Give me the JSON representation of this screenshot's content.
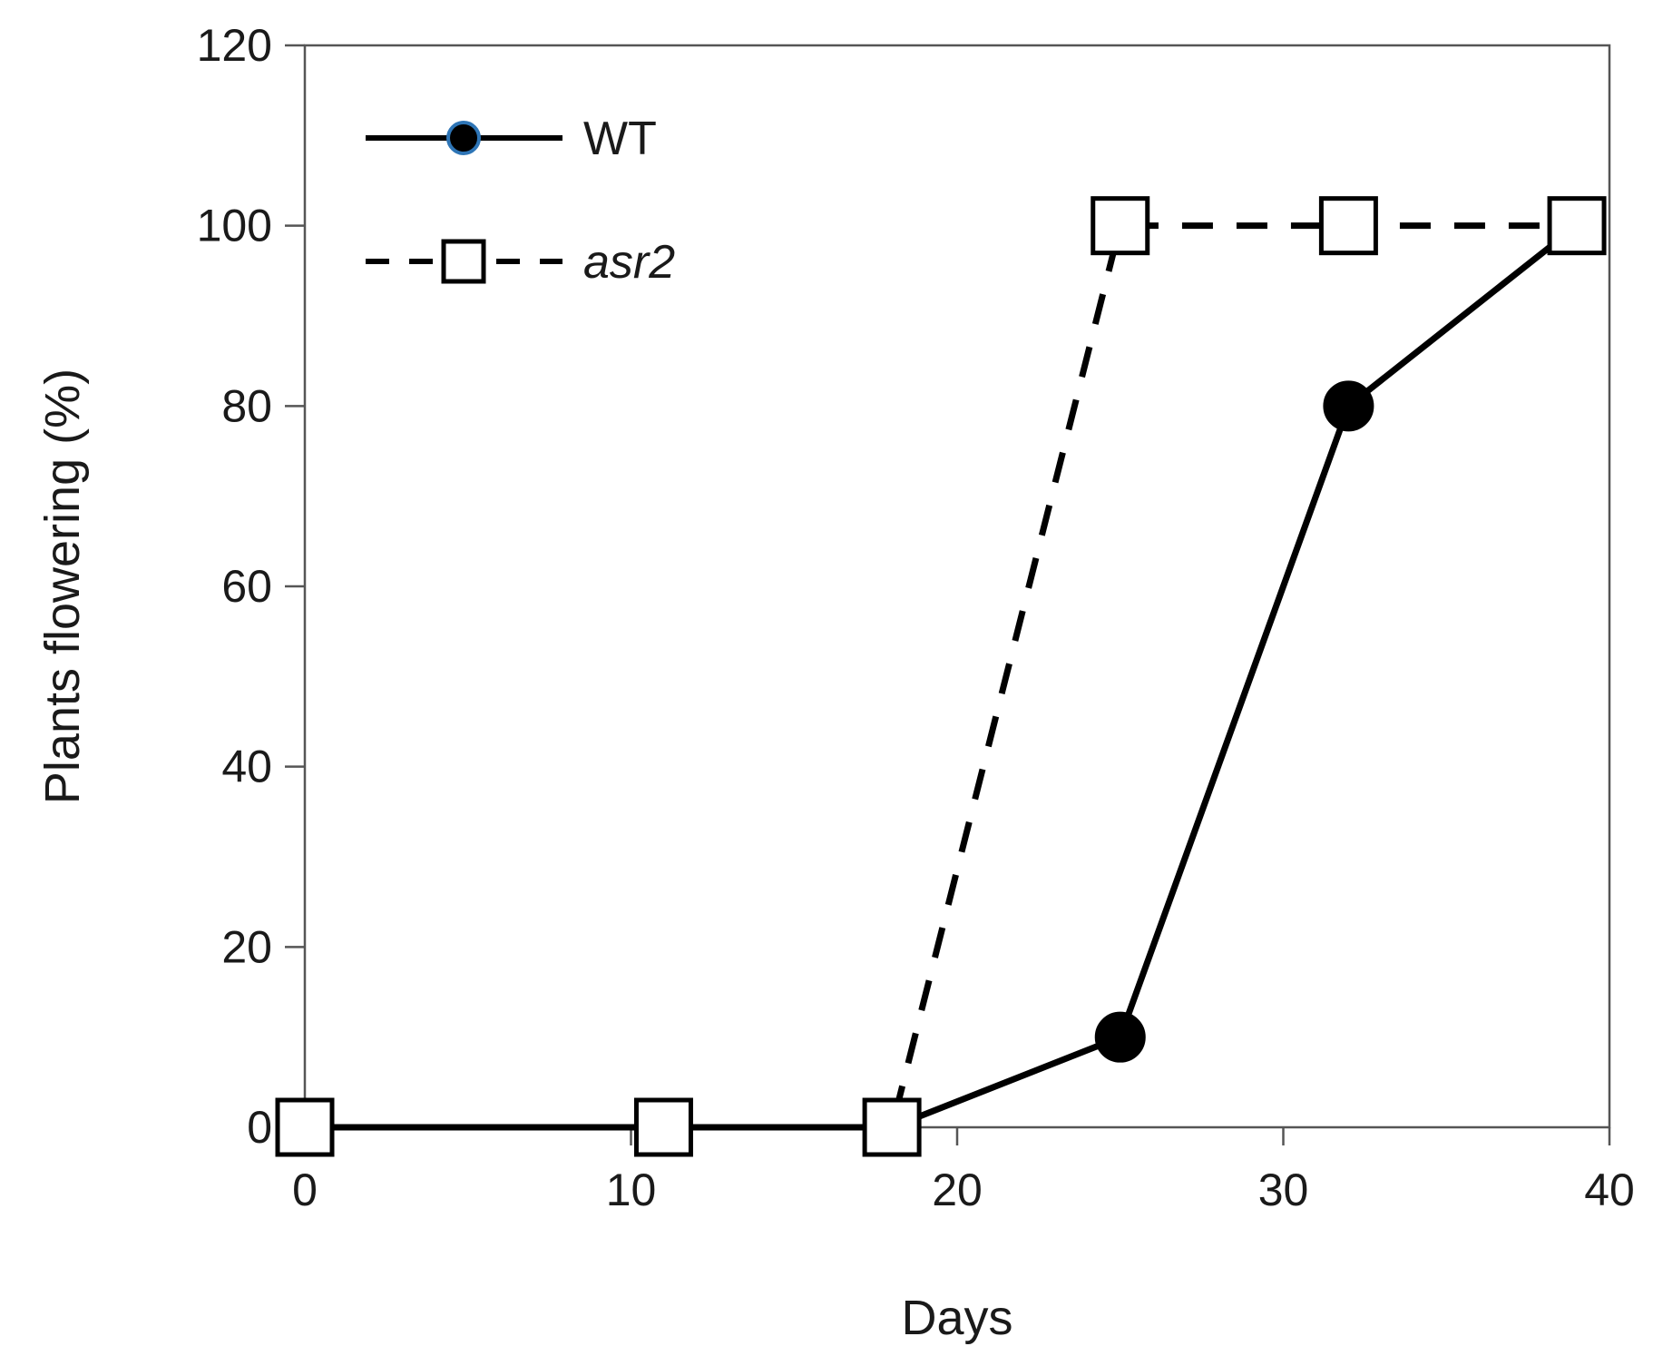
{
  "chart_data": {
    "type": "line",
    "title": "",
    "xlabel": "Days",
    "ylabel": "Plants flowering (%)",
    "xlim": [
      0,
      40
    ],
    "ylim": [
      0,
      120
    ],
    "xticks": [
      0,
      10,
      20,
      30,
      40
    ],
    "yticks": [
      0,
      20,
      40,
      60,
      80,
      100,
      120
    ],
    "grid": false,
    "legend_position": "top-left",
    "series": [
      {
        "name": "WT",
        "style": "solid",
        "marker": "filled-circle",
        "color": "#000000",
        "marker_edge_color": "#2e75b6",
        "x": [
          0,
          11,
          18,
          25,
          32,
          39
        ],
        "y": [
          0,
          0,
          0,
          10,
          80,
          100
        ]
      },
      {
        "name": "asr2",
        "style": "dashed",
        "marker": "open-square",
        "color": "#000000",
        "x": [
          0,
          11,
          18,
          25,
          32,
          39
        ],
        "y": [
          0,
          0,
          0,
          100,
          100,
          100
        ]
      }
    ]
  }
}
